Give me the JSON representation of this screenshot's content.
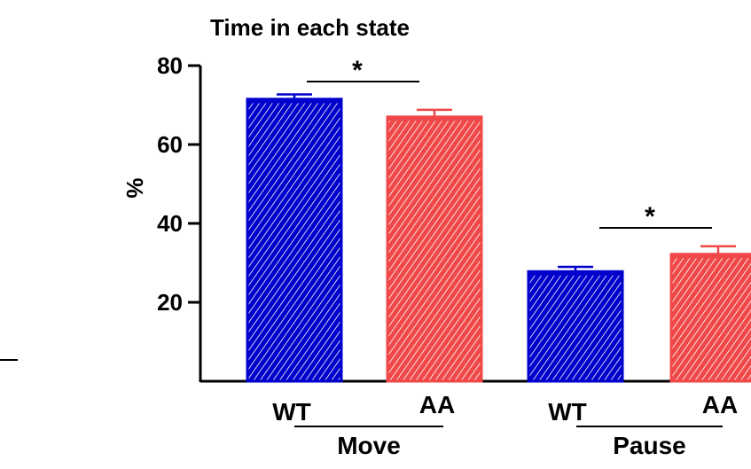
{
  "chart_data": {
    "type": "bar",
    "title": "Time in each state",
    "ylabel": "%",
    "ylim": [
      0,
      80
    ],
    "yticks": [
      20,
      40,
      60,
      80
    ],
    "grid": false,
    "groups": [
      {
        "name": "Move",
        "bars": [
          {
            "label": "WT",
            "value": 71.5,
            "error": 1.2,
            "color": "#0000cc"
          },
          {
            "label": "AA",
            "value": 67.0,
            "error": 1.8,
            "color": "#f04848"
          }
        ],
        "significance": "*"
      },
      {
        "name": "Pause",
        "bars": [
          {
            "label": "WT",
            "value": 27.8,
            "error": 1.2,
            "color": "#0000cc"
          },
          {
            "label": "AA",
            "value": 32.2,
            "error": 2.0,
            "color": "#f04848"
          }
        ],
        "significance": "*"
      }
    ]
  }
}
